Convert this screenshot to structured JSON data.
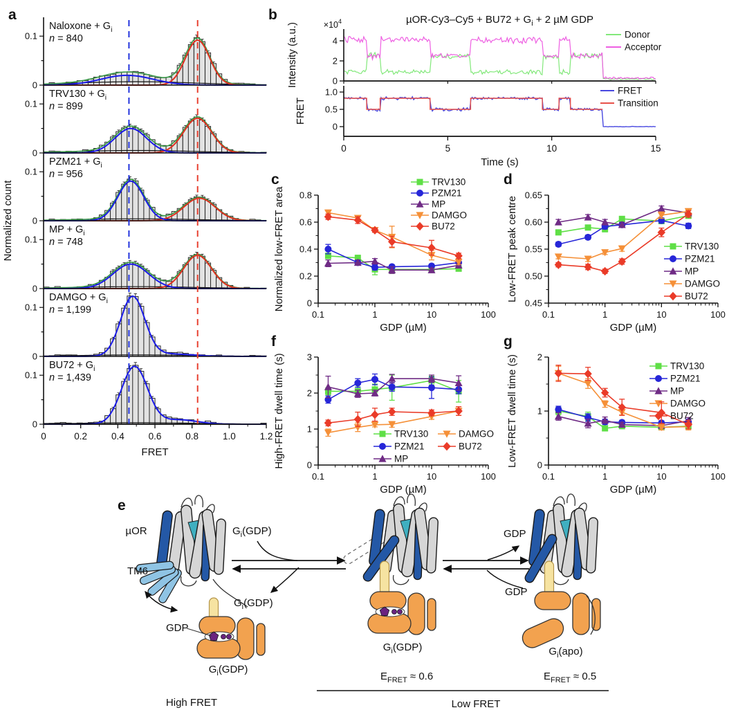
{
  "panel_labels": {
    "a": "a",
    "b": "b",
    "c": "c",
    "d": "d",
    "e": "e",
    "f": "f",
    "g": "g"
  },
  "colors": {
    "trv130": "#5fdf46",
    "pzm21": "#2626d8",
    "mp": "#6f2b85",
    "damgo": "#f59038",
    "bu72": "#ea3b28",
    "donor": "#82e87a",
    "acceptor": "#ee5fe2",
    "fret": "#4848e0",
    "transition": "#e85048",
    "hist_low": "#1a1ae8",
    "hist_high": "#e03020",
    "hist_sum": "#3a9a48",
    "hist_bg": "#111111",
    "dash_blue": "#2233dd",
    "dash_red": "#e84030",
    "bar_fill": "#e2e2e2"
  },
  "chart_data": {
    "a": {
      "type": "histogram-grid",
      "xlabel": "FRET",
      "ylabel": "Normalized count",
      "xlim": [
        0,
        1.2
      ],
      "xticks": [
        0,
        0.2,
        0.4,
        0.6,
        0.8,
        1.0,
        1.2
      ],
      "xtick_labels": [
        "0",
        "0.2",
        "0.4",
        "0.6",
        "0.8",
        "1.0",
        "1.2"
      ],
      "ytick_labels": [
        "0",
        "0.1"
      ],
      "row_ymax": 0.13,
      "bin_width": 0.03,
      "dash_blue_x": 0.46,
      "dash_red_x": 0.83,
      "rows": [
        {
          "label": "Naloxone + G",
          "label_sub": "i",
          "n_text": "n = 840",
          "low": {
            "amp": 0.02,
            "center": 0.45,
            "sigma": 0.14
          },
          "high": {
            "amp": 0.092,
            "center": 0.83,
            "sigma": 0.065
          },
          "bg_amp": 0.007,
          "show_sum": true,
          "show_high": true
        },
        {
          "label": "TRV130 + G",
          "label_sub": "i",
          "n_text": "n = 899",
          "low": {
            "amp": 0.05,
            "center": 0.47,
            "sigma": 0.085
          },
          "high": {
            "amp": 0.071,
            "center": 0.83,
            "sigma": 0.075
          },
          "bg_amp": 0.005,
          "show_sum": true,
          "show_high": true
        },
        {
          "label": "PZM21 + G",
          "label_sub": "i",
          "n_text": "n = 956",
          "low": {
            "amp": 0.081,
            "center": 0.47,
            "sigma": 0.07
          },
          "high": {
            "amp": 0.046,
            "center": 0.84,
            "sigma": 0.085
          },
          "bg_amp": 0.004,
          "show_sum": true,
          "show_high": true
        },
        {
          "label": "MP + G",
          "label_sub": "i",
          "n_text": "n = 748",
          "low": {
            "amp": 0.05,
            "center": 0.47,
            "sigma": 0.095
          },
          "high": {
            "amp": 0.068,
            "center": 0.83,
            "sigma": 0.075
          },
          "bg_amp": 0.004,
          "show_sum": true,
          "show_high": true
        },
        {
          "label": "DAMGO + G",
          "label_sub": "i",
          "n_text": "n = 1,199",
          "low": {
            "amp": 0.122,
            "center": 0.48,
            "sigma": 0.065
          },
          "high": {
            "amp": 0.0,
            "center": 0.84,
            "sigma": 0.1
          },
          "tail": {
            "amp": 0.005,
            "center": 0.68,
            "sigma": 0.12
          },
          "bg_amp": 0.003,
          "show_sum": false,
          "show_high": false
        },
        {
          "label": "BU72 + G",
          "label_sub": "i",
          "n_text": "n = 1,439",
          "low": {
            "amp": 0.118,
            "center": 0.49,
            "sigma": 0.07
          },
          "high": {
            "amp": 0.0,
            "center": 0.84,
            "sigma": 0.1
          },
          "tail": {
            "amp": 0.009,
            "center": 0.73,
            "sigma": 0.1
          },
          "bg_amp": 0.003,
          "show_sum": false,
          "show_high": false
        }
      ]
    },
    "b": {
      "type": "time-trace",
      "title_pre": "µOR-Cy3–Cy5 + BU72 + G",
      "title_sub": "i",
      "title_post": " + 2 µM GDP",
      "xlabel": "Time (s)",
      "xlim": [
        0,
        15
      ],
      "xticks": [
        0,
        5,
        10,
        15
      ],
      "xtick_labels": [
        "0",
        "5",
        "10",
        "15"
      ],
      "top": {
        "ylabel": "Intensity (a.u.)",
        "scale_pre": "×10",
        "scale_sup": "4",
        "yticks": [
          0,
          2,
          4
        ],
        "ytick_labels": [
          "0",
          "2",
          "4"
        ],
        "legend": [
          "Donor",
          "Acceptor"
        ]
      },
      "bottom": {
        "ylabel": "FRET",
        "yticks": [
          0,
          0.5,
          1.0
        ],
        "ytick_labels": [
          "0",
          "0.5",
          "1.0"
        ],
        "legend": [
          "FRET",
          "Transition"
        ]
      },
      "total_intensity": 5.0,
      "bleach_time": 12.45,
      "high_state": 0.82,
      "low_state": 0.5,
      "segments": [
        [
          0,
          1.1,
          0.82
        ],
        [
          1.1,
          1.75,
          0.5
        ],
        [
          1.75,
          4.15,
          0.82
        ],
        [
          4.15,
          6.1,
          0.5
        ],
        [
          6.1,
          9.55,
          0.82
        ],
        [
          9.55,
          10.35,
          0.5
        ],
        [
          10.35,
          10.9,
          0.82
        ],
        [
          10.9,
          12.45,
          0.5
        ]
      ]
    },
    "c": {
      "type": "scatter-line",
      "xlabel": "GDP (µM)",
      "ylabel": "Normalized low-FRET area",
      "x": [
        0.15,
        0.5,
        1,
        2,
        10,
        30
      ],
      "xticks": [
        0.1,
        1,
        10,
        100
      ],
      "xtick_labels": [
        "0.1",
        "1",
        "10",
        "100"
      ],
      "ylim": [
        0,
        0.8
      ],
      "yticks": [
        0,
        0.2,
        0.4,
        0.6,
        0.8
      ],
      "ytick_labels": [
        "0",
        "0.2",
        "0.4",
        "0.6",
        "0.8"
      ],
      "yminor": 0.1,
      "series": [
        {
          "name": "TRV130",
          "marker": "square",
          "color_key": "trv130",
          "values": [
            0.35,
            0.335,
            0.25,
            0.25,
            0.25,
            0.255
          ],
          "errors": [
            0.02,
            0.02,
            0.04,
            0.03,
            0.02,
            0.015
          ]
        },
        {
          "name": "PZM21",
          "marker": "circle",
          "color_key": "pzm21",
          "values": [
            0.4,
            0.3,
            0.265,
            0.27,
            0.275,
            0.3
          ],
          "errors": [
            0.035,
            0.015,
            0.02,
            0.015,
            0.015,
            0.02
          ]
        },
        {
          "name": "MP",
          "marker": "triangle-up",
          "color_key": "mp",
          "values": [
            0.295,
            0.3,
            0.31,
            0.245,
            0.245,
            0.28
          ],
          "errors": [
            0.025,
            0.02,
            0.02,
            0.025,
            0.015,
            0.015
          ]
        },
        {
          "name": "DAMGO",
          "marker": "triangle-down",
          "color_key": "damgo",
          "values": [
            0.67,
            0.63,
            0.54,
            0.49,
            0.355,
            0.305
          ],
          "errors": [
            0.02,
            0.02,
            0.015,
            0.08,
            0.035,
            0.02
          ]
        },
        {
          "name": "BU72",
          "marker": "diamond",
          "color_key": "bu72",
          "values": [
            0.64,
            0.615,
            0.54,
            0.455,
            0.41,
            0.35
          ],
          "errors": [
            0.02,
            0.025,
            0.015,
            0.04,
            0.055,
            0.02
          ]
        }
      ]
    },
    "d": {
      "type": "scatter-line",
      "xlabel": "GDP (µM)",
      "ylabel": "Low-FRET peak centre",
      "x": [
        0.15,
        0.5,
        1,
        2,
        10,
        30
      ],
      "xticks": [
        0.1,
        1,
        10,
        100
      ],
      "xtick_labels": [
        "0.1",
        "1",
        "10",
        "100"
      ],
      "ylim": [
        0.45,
        0.65
      ],
      "yticks": [
        0.45,
        0.5,
        0.55,
        0.6,
        0.65
      ],
      "ytick_labels": [
        "0.45",
        "0.50",
        "0.55",
        "0.60",
        "0.65"
      ],
      "yminor": 0.025,
      "series": [
        {
          "name": "TRV130",
          "marker": "square",
          "color_key": "trv130",
          "values": [
            0.581,
            0.59,
            0.587,
            0.606,
            0.602,
            0.612
          ],
          "errors": [
            0.004,
            0.004,
            0.005,
            0.004,
            0.005,
            0.005
          ]
        },
        {
          "name": "PZM21",
          "marker": "circle",
          "color_key": "pzm21",
          "values": [
            0.559,
            0.572,
            0.592,
            0.595,
            0.603,
            0.593
          ],
          "errors": [
            0.004,
            0.004,
            0.005,
            0.004,
            0.005,
            0.005
          ]
        },
        {
          "name": "MP",
          "marker": "triangle-up",
          "color_key": "mp",
          "values": [
            0.6,
            0.609,
            0.6,
            0.595,
            0.625,
            0.617
          ],
          "errors": [
            0.005,
            0.005,
            0.005,
            0.005,
            0.005,
            0.005
          ]
        },
        {
          "name": "DAMGO",
          "marker": "triangle-down",
          "color_key": "damgo",
          "values": [
            0.536,
            0.532,
            0.544,
            0.551,
            0.613,
            0.62
          ],
          "errors": [
            0.004,
            0.005,
            0.004,
            0.005,
            0.006,
            0.005
          ]
        },
        {
          "name": "BU72",
          "marker": "diamond",
          "color_key": "bu72",
          "values": [
            0.521,
            0.517,
            0.509,
            0.527,
            0.581,
            0.615
          ],
          "errors": [
            0.004,
            0.005,
            0.004,
            0.005,
            0.008,
            0.006
          ]
        }
      ]
    },
    "f": {
      "type": "scatter-line",
      "xlabel": "GDP (µM)",
      "ylabel": "High-FRET dwell time (s)",
      "x": [
        0.15,
        0.5,
        1,
        2,
        10,
        30
      ],
      "xticks": [
        0.1,
        1,
        10,
        100
      ],
      "xtick_labels": [
        "0.1",
        "1",
        "10",
        "100"
      ],
      "ylim": [
        0,
        3
      ],
      "yticks": [
        0,
        1,
        2,
        3
      ],
      "ytick_labels": [
        "0",
        "1",
        "2",
        "3"
      ],
      "yminor": 0.5,
      "series": [
        {
          "name": "TRV130",
          "marker": "square",
          "color_key": "trv130",
          "values": [
            2.05,
            2.05,
            2.1,
            2.15,
            2.35,
            2.05
          ],
          "errors": [
            0.1,
            0.12,
            0.15,
            0.35,
            0.12,
            0.3
          ]
        },
        {
          "name": "PZM21",
          "marker": "circle",
          "color_key": "pzm21",
          "values": [
            1.82,
            2.28,
            2.38,
            2.17,
            2.15,
            2.1
          ],
          "errors": [
            0.1,
            0.12,
            0.15,
            0.12,
            0.3,
            0.12
          ]
        },
        {
          "name": "MP",
          "marker": "triangle-up",
          "color_key": "mp",
          "values": [
            2.17,
            1.98,
            2.0,
            2.4,
            2.4,
            2.28
          ],
          "errors": [
            0.3,
            0.1,
            0.08,
            0.12,
            0.1,
            0.2
          ]
        },
        {
          "name": "DAMGO",
          "marker": "triangle-down",
          "color_key": "damgo",
          "values": [
            0.9,
            1.05,
            1.12,
            1.13,
            1.35,
            1.5
          ],
          "errors": [
            0.1,
            0.12,
            0.06,
            0.08,
            0.08,
            0.12
          ]
        },
        {
          "name": "BU72",
          "marker": "diamond",
          "color_key": "bu72",
          "values": [
            1.17,
            1.27,
            1.4,
            1.48,
            1.45,
            1.5
          ],
          "errors": [
            0.08,
            0.2,
            0.18,
            0.1,
            0.08,
            0.12
          ]
        }
      ]
    },
    "g": {
      "type": "scatter-line",
      "xlabel": "GDP (µM)",
      "ylabel": "Low-FRET dwell time (s)",
      "x": [
        0.15,
        0.5,
        1,
        2,
        10,
        30
      ],
      "xticks": [
        0.1,
        1,
        10,
        100
      ],
      "xtick_labels": [
        "0.1",
        "1",
        "10",
        "100"
      ],
      "ylim": [
        0,
        2
      ],
      "yticks": [
        0,
        1,
        2
      ],
      "ytick_labels": [
        "0",
        "1",
        "2"
      ],
      "yminor": 0.5,
      "series": [
        {
          "name": "TRV130",
          "marker": "square",
          "color_key": "trv130",
          "values": [
            1.0,
            0.9,
            0.68,
            0.72,
            0.7,
            0.72
          ],
          "errors": [
            0.07,
            0.08,
            0.04,
            0.04,
            0.04,
            0.05
          ]
        },
        {
          "name": "PZM21",
          "marker": "circle",
          "color_key": "pzm21",
          "values": [
            1.03,
            0.88,
            0.8,
            0.79,
            0.78,
            0.8
          ],
          "errors": [
            0.06,
            0.07,
            0.05,
            0.04,
            0.04,
            0.05
          ]
        },
        {
          "name": "MP",
          "marker": "triangle-up",
          "color_key": "mp",
          "values": [
            0.9,
            0.77,
            0.83,
            0.75,
            0.73,
            0.82
          ],
          "errors": [
            0.07,
            0.08,
            0.06,
            0.04,
            0.04,
            0.06
          ]
        },
        {
          "name": "DAMGO",
          "marker": "triangle-down",
          "color_key": "damgo",
          "values": [
            1.7,
            1.51,
            1.13,
            0.98,
            0.7,
            0.71
          ],
          "errors": [
            0.13,
            0.09,
            0.06,
            0.05,
            0.05,
            0.06
          ]
        },
        {
          "name": "BU72",
          "marker": "diamond",
          "color_key": "bu72",
          "values": [
            1.7,
            1.69,
            1.34,
            1.07,
            0.97,
            0.75
          ],
          "errors": [
            0.15,
            0.12,
            0.08,
            0.15,
            0.2,
            0.08
          ]
        }
      ]
    }
  },
  "panel_e": {
    "muor": "µOR",
    "tm6": "TM6",
    "gdp": "GDP",
    "g_pre": "G",
    "g_sub": "i",
    "gdp_suffix": "(GDP)",
    "apo_suffix": "(apo)",
    "efret_pre": "E",
    "efret_sub": "FRET",
    "efret_06": " ≈ 0.6",
    "efret_05": " ≈ 0.5",
    "high_fret": "High FRET",
    "low_fret": "Low FRET"
  }
}
